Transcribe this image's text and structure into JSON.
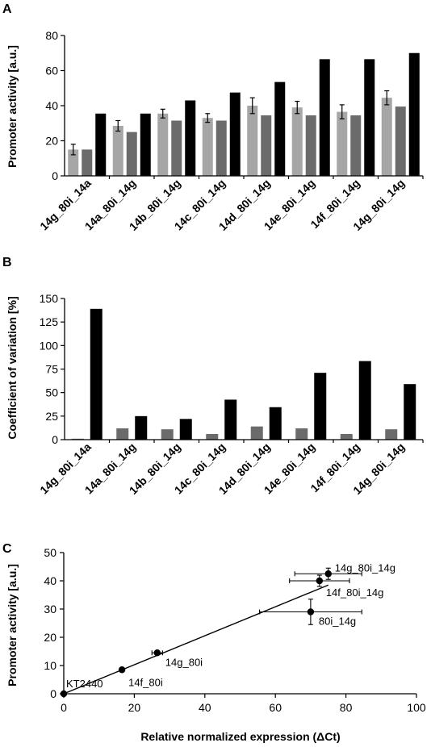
{
  "colors": {
    "light": "#a6a6a6",
    "mid": "#6b6b6b",
    "dark": "#000000"
  },
  "panels": {
    "a": "A",
    "b": "B",
    "c": "C"
  },
  "chart_data": [
    {
      "type": "bar",
      "ylabel": "Promoter activity [a.u.]",
      "ylim": [
        0,
        80
      ],
      "yticks": [
        0,
        20,
        40,
        60,
        80
      ],
      "categories": [
        "14g_80i_14a",
        "14a_80i_14g",
        "14b_80i_14g",
        "14c_80i_14g",
        "14d_80i_14g",
        "14e_80i_14g",
        "14f_80i_14g",
        "14g_80i_14g"
      ],
      "series": [
        {
          "values": [
            15,
            28.5,
            35.5,
            33,
            40,
            39,
            36.5,
            44.5
          ],
          "errors": [
            3,
            3,
            2.5,
            2.5,
            4.5,
            3.5,
            4,
            4
          ],
          "color": "#a6a6a6"
        },
        {
          "values": [
            15,
            25,
            31.5,
            31.5,
            34.5,
            34.5,
            34.5,
            39.5
          ],
          "color": "#6b6b6b"
        },
        {
          "values": [
            35.5,
            35.5,
            43,
            47.5,
            53.5,
            66.5,
            66.5,
            70
          ],
          "color": "#000000"
        }
      ]
    },
    {
      "type": "bar",
      "ylabel": "Coefficient of variation [%]",
      "ylim": [
        0,
        150
      ],
      "yticks": [
        0,
        25,
        50,
        75,
        100,
        125,
        150
      ],
      "categories": [
        "14g_80i_14a",
        "14a_80i_14g",
        "14b_80i_14g",
        "14c_80i_14g",
        "14d_80i_14g",
        "14e_80i_14g",
        "14f_80i_14g",
        "14g_80i_14g"
      ],
      "series": [
        {
          "values": [
            1,
            12,
            11,
            6,
            14,
            12,
            6,
            11
          ],
          "color": "#6b6b6b"
        },
        {
          "values": [
            139,
            25,
            22,
            42.5,
            34.5,
            71,
            83.5,
            59
          ],
          "color": "#000000"
        }
      ]
    },
    {
      "type": "scatter",
      "xlabel": "Relative normalized expression (ΔCt)",
      "ylabel": "Promoter activity [a.u.]",
      "xlim": [
        0,
        100
      ],
      "ylim": [
        0,
        50
      ],
      "xticks": [
        0,
        20,
        40,
        60,
        80,
        100
      ],
      "yticks": [
        0,
        10,
        20,
        30,
        40,
        50
      ],
      "points": [
        {
          "label": "KT2440",
          "x": 0,
          "y": 0,
          "xerr": 0,
          "yerr": 0
        },
        {
          "label": "14f_80i",
          "x": 16.5,
          "y": 8.5,
          "xerr": 0.5,
          "yerr": 0.5
        },
        {
          "label": "14g_80i",
          "x": 26.5,
          "y": 14.5,
          "xerr": 1.5,
          "yerr": 0.5
        },
        {
          "label": "80i_14g",
          "x": 70,
          "y": 29,
          "xerr": 14.5,
          "yerr": 4.5
        },
        {
          "label": "14f_80i_14g",
          "x": 72.5,
          "y": 40,
          "xerr": 8.5,
          "yerr": 2
        },
        {
          "label": "14g_80i_14g",
          "x": 75,
          "y": 42.5,
          "xerr": 9.5,
          "yerr": 2
        }
      ],
      "fit_line": {
        "x": [
          0,
          75
        ],
        "y": [
          0,
          38.5
        ]
      }
    }
  ]
}
